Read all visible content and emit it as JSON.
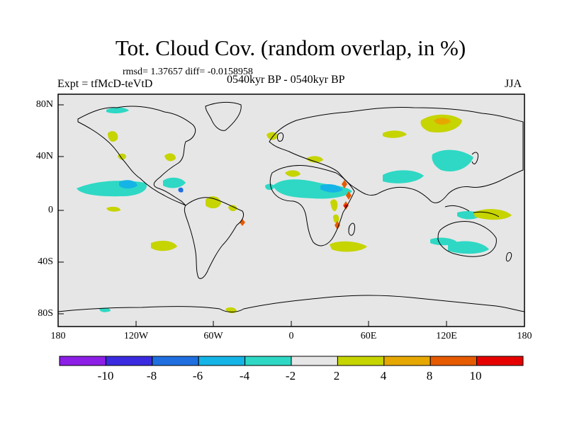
{
  "header": {
    "title": "Tot. Cloud Cov. (random overlap, in %)",
    "stats": "rmsd= 1.37657 diff= -0.0158958",
    "experiment": "Expt = tfMcD-teVtD",
    "period": "0540kyr BP - 0540kyr BP",
    "season": "JJA"
  },
  "axes": {
    "y_ticks": [
      "80N",
      "40N",
      "0",
      "40S",
      "80S"
    ],
    "x_ticks": [
      "180",
      "120W",
      "60W",
      "0",
      "60E",
      "120E",
      "180"
    ]
  },
  "colorbar": {
    "labels": [
      "-10",
      "-8",
      "-6",
      "-4",
      "-2",
      "2",
      "4",
      "8",
      "10"
    ],
    "colors": [
      "#8c1ee6",
      "#3a2be0",
      "#1f6fe0",
      "#15b4e6",
      "#2ed8c4",
      "#e6e6e6",
      "#c6d400",
      "#e6a800",
      "#e65a00",
      "#e60000"
    ]
  },
  "map_colors": {
    "background": "#e6e6e6",
    "coast": "#000000"
  }
}
